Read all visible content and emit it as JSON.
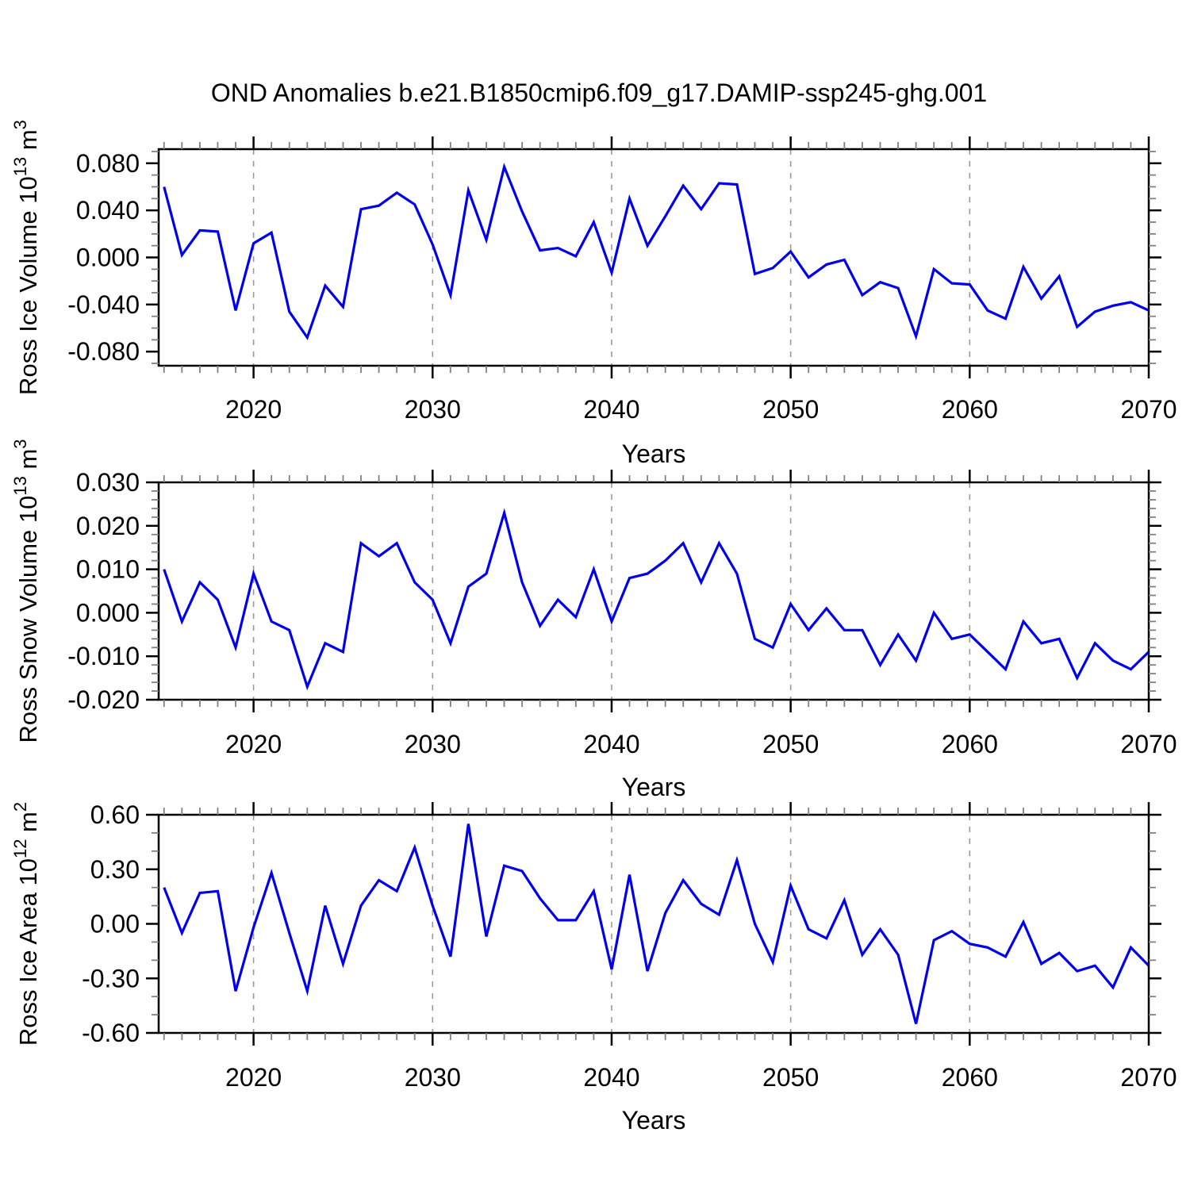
{
  "title": "OND Anomalies b.e21.B1850cmip6.f09_g17.DAMIP-ssp245-ghg.001",
  "xlabel": "Years",
  "line_color": "#0000EE",
  "grid_color": "#9a9a9a",
  "frame_color": "#000000",
  "minor_tick_color": "#808080",
  "x_major_ticks": [
    2020,
    2030,
    2040,
    2050,
    2060,
    2070
  ],
  "x_major_tick_labels": [
    "2020",
    "2030",
    "2040",
    "2050",
    "2060",
    "2070"
  ],
  "chart_data": [
    {
      "type": "line",
      "ylabel": "Ross Ice Volume 10^13 m^3",
      "ylabel_parts": [
        [
          "Ross Ice Volume 10",
          false
        ],
        [
          "13",
          true
        ],
        [
          " m",
          false
        ],
        [
          "3",
          true
        ]
      ],
      "xlabel": "Years",
      "ylim": [
        -0.092,
        0.092
      ],
      "xlim": [
        2014.7,
        2070
      ],
      "ytick_values": [
        0.08,
        0.04,
        0.0,
        -0.04,
        -0.08
      ],
      "ytick_labels": [
        "0.080",
        "0.040",
        "0.000",
        "-0.040",
        "-0.080"
      ],
      "y_minor_step": 0.01,
      "grid": "vertical-dashed-decades",
      "legend": "none",
      "x": [
        2015,
        2016,
        2017,
        2018,
        2019,
        2020,
        2021,
        2022,
        2023,
        2024,
        2025,
        2026,
        2027,
        2028,
        2029,
        2030,
        2031,
        2032,
        2033,
        2034,
        2035,
        2036,
        2037,
        2038,
        2039,
        2040,
        2041,
        2042,
        2043,
        2044,
        2045,
        2046,
        2047,
        2048,
        2049,
        2050,
        2051,
        2052,
        2053,
        2054,
        2055,
        2056,
        2057,
        2058,
        2059,
        2060,
        2061,
        2062,
        2063,
        2064,
        2065,
        2066,
        2067,
        2068,
        2069,
        2070
      ],
      "values": [
        0.06,
        0.002,
        0.023,
        0.022,
        -0.045,
        0.012,
        0.021,
        -0.046,
        -0.068,
        -0.024,
        -0.042,
        0.041,
        0.044,
        0.055,
        0.045,
        0.011,
        -0.032,
        0.057,
        0.015,
        0.077,
        0.039,
        0.006,
        0.008,
        0.001,
        0.03,
        -0.013,
        0.05,
        0.01,
        0.035,
        0.061,
        0.041,
        0.063,
        0.062,
        -0.014,
        -0.009,
        0.005,
        -0.017,
        -0.006,
        -0.002,
        -0.032,
        -0.021,
        -0.026,
        -0.067,
        -0.01,
        -0.022,
        -0.023,
        -0.045,
        -0.052,
        -0.008,
        -0.035,
        -0.016,
        -0.059,
        -0.046,
        -0.041,
        -0.038,
        -0.045
      ]
    },
    {
      "type": "line",
      "ylabel": "Ross Snow Volume 10^13 m^3",
      "ylabel_parts": [
        [
          "Ross Snow Volume 10",
          false
        ],
        [
          "13",
          true
        ],
        [
          " m",
          false
        ],
        [
          "3",
          true
        ]
      ],
      "xlabel": "Years",
      "ylim": [
        -0.02,
        0.03
      ],
      "xlim": [
        2014.7,
        2070
      ],
      "ytick_values": [
        0.03,
        0.02,
        0.01,
        0.0,
        -0.01,
        -0.02
      ],
      "ytick_labels": [
        "0.030",
        "0.020",
        "0.010",
        "0.000",
        "-0.010",
        "-0.020"
      ],
      "y_minor_step": 0.002,
      "grid": "vertical-dashed-decades",
      "legend": "none",
      "x": [
        2015,
        2016,
        2017,
        2018,
        2019,
        2020,
        2021,
        2022,
        2023,
        2024,
        2025,
        2026,
        2027,
        2028,
        2029,
        2030,
        2031,
        2032,
        2033,
        2034,
        2035,
        2036,
        2037,
        2038,
        2039,
        2040,
        2041,
        2042,
        2043,
        2044,
        2045,
        2046,
        2047,
        2048,
        2049,
        2050,
        2051,
        2052,
        2053,
        2054,
        2055,
        2056,
        2057,
        2058,
        2059,
        2060,
        2061,
        2062,
        2063,
        2064,
        2065,
        2066,
        2067,
        2068,
        2069,
        2070
      ],
      "values": [
        0.01,
        -0.002,
        0.007,
        0.003,
        -0.008,
        0.009,
        -0.002,
        -0.004,
        -0.017,
        -0.007,
        -0.009,
        0.016,
        0.013,
        0.016,
        0.007,
        0.003,
        -0.007,
        0.006,
        0.009,
        0.023,
        0.007,
        -0.003,
        0.003,
        -0.001,
        0.01,
        -0.002,
        0.008,
        0.009,
        0.012,
        0.016,
        0.007,
        0.016,
        0.009,
        -0.006,
        -0.008,
        0.002,
        -0.004,
        0.001,
        -0.004,
        -0.004,
        -0.012,
        -0.005,
        -0.011,
        0.0,
        -0.006,
        -0.005,
        -0.009,
        -0.013,
        -0.002,
        -0.007,
        -0.006,
        -0.015,
        -0.007,
        -0.011,
        -0.013,
        -0.009
      ]
    },
    {
      "type": "line",
      "ylabel": "Ross Ice Area 10^12 m^2",
      "ylabel_parts": [
        [
          "Ross Ice Area 10",
          false
        ],
        [
          "12",
          true
        ],
        [
          " m",
          false
        ],
        [
          "2",
          true
        ]
      ],
      "xlabel": "Years",
      "ylim": [
        -0.6,
        0.6
      ],
      "xlim": [
        2014.7,
        2070
      ],
      "ytick_values": [
        0.6,
        0.3,
        0.0,
        -0.3,
        -0.6
      ],
      "ytick_labels": [
        "0.60",
        "0.30",
        "0.00",
        "-0.30",
        "-0.60"
      ],
      "y_minor_step": 0.1,
      "grid": "vertical-dashed-decades",
      "legend": "none",
      "x": [
        2015,
        2016,
        2017,
        2018,
        2019,
        2020,
        2021,
        2022,
        2023,
        2024,
        2025,
        2026,
        2027,
        2028,
        2029,
        2030,
        2031,
        2032,
        2033,
        2034,
        2035,
        2036,
        2037,
        2038,
        2039,
        2040,
        2041,
        2042,
        2043,
        2044,
        2045,
        2046,
        2047,
        2048,
        2049,
        2050,
        2051,
        2052,
        2053,
        2054,
        2055,
        2056,
        2057,
        2058,
        2059,
        2060,
        2061,
        2062,
        2063,
        2064,
        2065,
        2066,
        2067,
        2068,
        2069,
        2070
      ],
      "values": [
        0.2,
        -0.05,
        0.17,
        0.18,
        -0.37,
        -0.02,
        0.28,
        -0.05,
        -0.37,
        0.1,
        -0.22,
        0.1,
        0.24,
        0.18,
        0.42,
        0.1,
        -0.18,
        0.55,
        -0.07,
        0.32,
        0.29,
        0.14,
        0.02,
        0.02,
        0.18,
        -0.25,
        0.27,
        -0.26,
        0.06,
        0.24,
        0.11,
        0.05,
        0.35,
        0.0,
        -0.21,
        0.21,
        -0.03,
        -0.08,
        0.13,
        -0.17,
        -0.03,
        -0.17,
        -0.55,
        -0.09,
        -0.04,
        -0.11,
        -0.13,
        -0.18,
        0.01,
        -0.22,
        -0.16,
        -0.26,
        -0.23,
        -0.35,
        -0.13,
        -0.23
      ]
    }
  ]
}
